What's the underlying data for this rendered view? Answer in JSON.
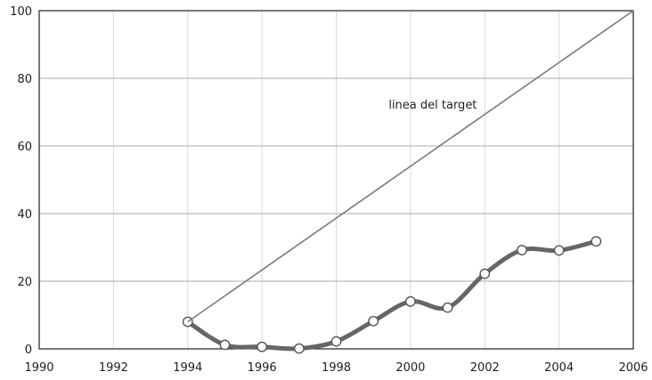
{
  "chart_data": {
    "type": "line",
    "xlim": [
      1990,
      2006
    ],
    "ylim": [
      0,
      100
    ],
    "x_ticks": [
      "1990",
      "1992",
      "1994",
      "1996",
      "1998",
      "2000",
      "2002",
      "2004",
      "2006"
    ],
    "y_ticks": [
      "0",
      "20",
      "40",
      "60",
      "80",
      "100"
    ],
    "grid": true,
    "series": [
      {
        "x": [
          1994,
          1995,
          1996,
          1997,
          1998,
          1999,
          2000,
          2001,
          2002,
          2003,
          2004,
          2005
        ],
        "values": [
          8,
          1.2,
          0.6,
          0.1,
          2.2,
          8.2,
          14,
          12.2,
          22.2,
          29.2,
          29.1,
          31.8
        ],
        "color": "#666666",
        "markers": true
      },
      {
        "name": "linea del target",
        "x": [
          1994,
          2006
        ],
        "values": [
          8,
          100
        ],
        "color": "#7a7a7a",
        "markers": false
      }
    ],
    "annotations": [
      {
        "text": "linea del target",
        "x": 2000.6,
        "y": 71
      }
    ]
  }
}
